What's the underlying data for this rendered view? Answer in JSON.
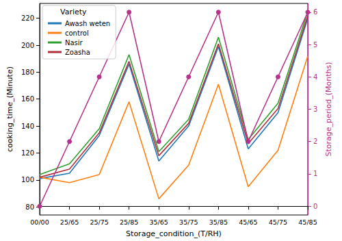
{
  "chart_data": {
    "type": "line",
    "x_label": "Storage_condition_(T/RH)",
    "y_label": "cooking_time_(Minute)",
    "y2_label": "Storage_period_(Months)",
    "legend_title": "Variety",
    "categories": [
      "00/00",
      "25/65",
      "25/75",
      "25/85",
      "35/65",
      "35/75",
      "35/85",
      "45/65",
      "45/75",
      "45/85"
    ],
    "series": [
      {
        "name": "Awash weten",
        "color": "#1f77b4",
        "values": [
          101,
          105,
          133,
          186,
          114,
          140,
          199,
          123,
          150,
          220
        ],
        "line_style": "solid"
      },
      {
        "name": "control",
        "color": "#ff7f0e",
        "values": [
          102,
          98,
          104,
          158,
          86,
          111,
          171,
          95,
          122,
          192
        ],
        "line_style": "solid"
      },
      {
        "name": "Nasir",
        "color": "#2ca02c",
        "values": [
          104,
          112,
          138,
          193,
          121,
          145,
          206,
          130,
          157,
          225
        ],
        "line_style": "solid"
      },
      {
        "name": "Zoasha",
        "color": "#b22e3a",
        "values": [
          102,
          108,
          135,
          188,
          118,
          142,
          201,
          127,
          153,
          222
        ],
        "line_style": "solid"
      },
      {
        "color": "#b5338a",
        "values": [
          0,
          2,
          4,
          6,
          2,
          4,
          6,
          2,
          4,
          6
        ],
        "axis": "y2",
        "marker": "circle",
        "line_style": "solid"
      }
    ],
    "ylim": [
      74,
      231
    ],
    "yticks": [
      80,
      100,
      120,
      140,
      160,
      180,
      200,
      220
    ],
    "y2lim": [
      -0.27,
      6.27
    ],
    "y2ticks": [
      0,
      1,
      2,
      3,
      4,
      5,
      6
    ],
    "grid": false,
    "legend": "upper left"
  }
}
